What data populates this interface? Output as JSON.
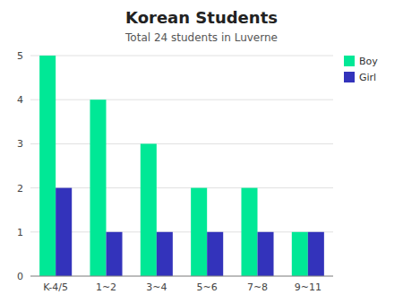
{
  "chart_data": {
    "type": "bar",
    "title": "Korean Students",
    "subtitle": "Total 24 students  in  Luverne",
    "categories": [
      "K-4/5",
      "1~2",
      "3~4",
      "5~6",
      "7~8",
      "9~11"
    ],
    "series": [
      {
        "name": "Boy",
        "color": "#00E896",
        "values": [
          5,
          4,
          3,
          2,
          2,
          1
        ]
      },
      {
        "name": "Girl",
        "color": "#3333bb",
        "values": [
          2,
          1,
          1,
          1,
          1,
          1
        ]
      }
    ],
    "ylim": [
      0,
      5
    ],
    "yticks": [
      0,
      1,
      2,
      3,
      4,
      5
    ],
    "grid": true,
    "legend": "upper right"
  }
}
